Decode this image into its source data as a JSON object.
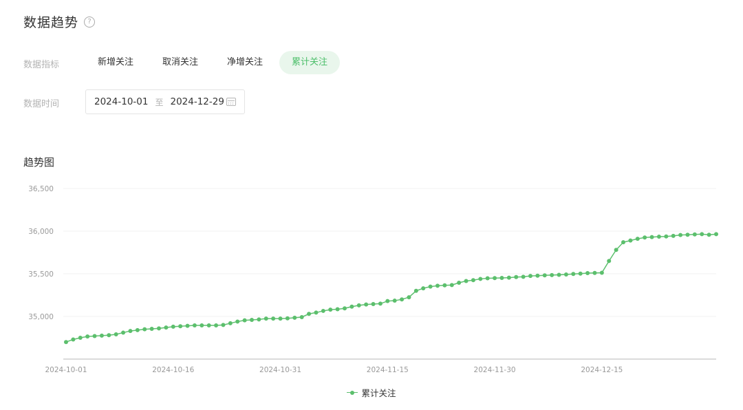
{
  "header": {
    "title": "数据趋势",
    "help_glyph": "?"
  },
  "filters": {
    "metric_label": "数据指标",
    "metric_tabs": [
      {
        "label": "新增关注",
        "active": false
      },
      {
        "label": "取消关注",
        "active": false
      },
      {
        "label": "净增关注",
        "active": false
      },
      {
        "label": "累计关注",
        "active": true
      }
    ],
    "time_label": "数据时间",
    "date_start": "2024-10-01",
    "date_separator": "至",
    "date_end": "2024-12-29"
  },
  "chart_section": {
    "title": "趋势图"
  },
  "colors": {
    "accent": "#5cbf6d",
    "active_tab_bg": "#e9f6ec",
    "active_tab_text": "#4cbf6a"
  },
  "chart_data": {
    "type": "line",
    "title": "",
    "xlabel": "",
    "ylabel": "",
    "ylim": [
      34500,
      36500
    ],
    "y_ticks": [
      "36,500",
      "36,000",
      "35,500",
      "35,000"
    ],
    "y_tick_values": [
      36500,
      36000,
      35500,
      35000
    ],
    "x_tick_labels": [
      "2024-10-01",
      "2024-10-16",
      "2024-10-31",
      "2024-11-15",
      "2024-11-30",
      "2024-12-15"
    ],
    "x_start": "2024-10-01",
    "x_end": "2024-12-29",
    "grid": true,
    "legend_position": "bottom-center",
    "series": [
      {
        "name": "累计关注",
        "color": "#5cbf6d",
        "values": [
          34700,
          34730,
          34750,
          34765,
          34770,
          34775,
          34780,
          34790,
          34810,
          34830,
          34840,
          34850,
          34855,
          34860,
          34870,
          34880,
          34885,
          34890,
          34895,
          34895,
          34895,
          34895,
          34900,
          34920,
          34940,
          34955,
          34960,
          34965,
          34975,
          34975,
          34975,
          34978,
          34985,
          34992,
          35030,
          35045,
          35065,
          35080,
          35085,
          35095,
          35115,
          35130,
          35140,
          35145,
          35150,
          35180,
          35185,
          35200,
          35225,
          35300,
          35330,
          35350,
          35360,
          35365,
          35368,
          35395,
          35415,
          35425,
          35440,
          35448,
          35450,
          35452,
          35455,
          35462,
          35465,
          35475,
          35478,
          35482,
          35485,
          35488,
          35492,
          35498,
          35502,
          35508,
          35510,
          35512,
          35650,
          35780,
          35870,
          35890,
          35910,
          35925,
          35930,
          35935,
          35938,
          35945,
          35955,
          35958,
          35962,
          35965,
          35958,
          35965
        ]
      }
    ]
  }
}
